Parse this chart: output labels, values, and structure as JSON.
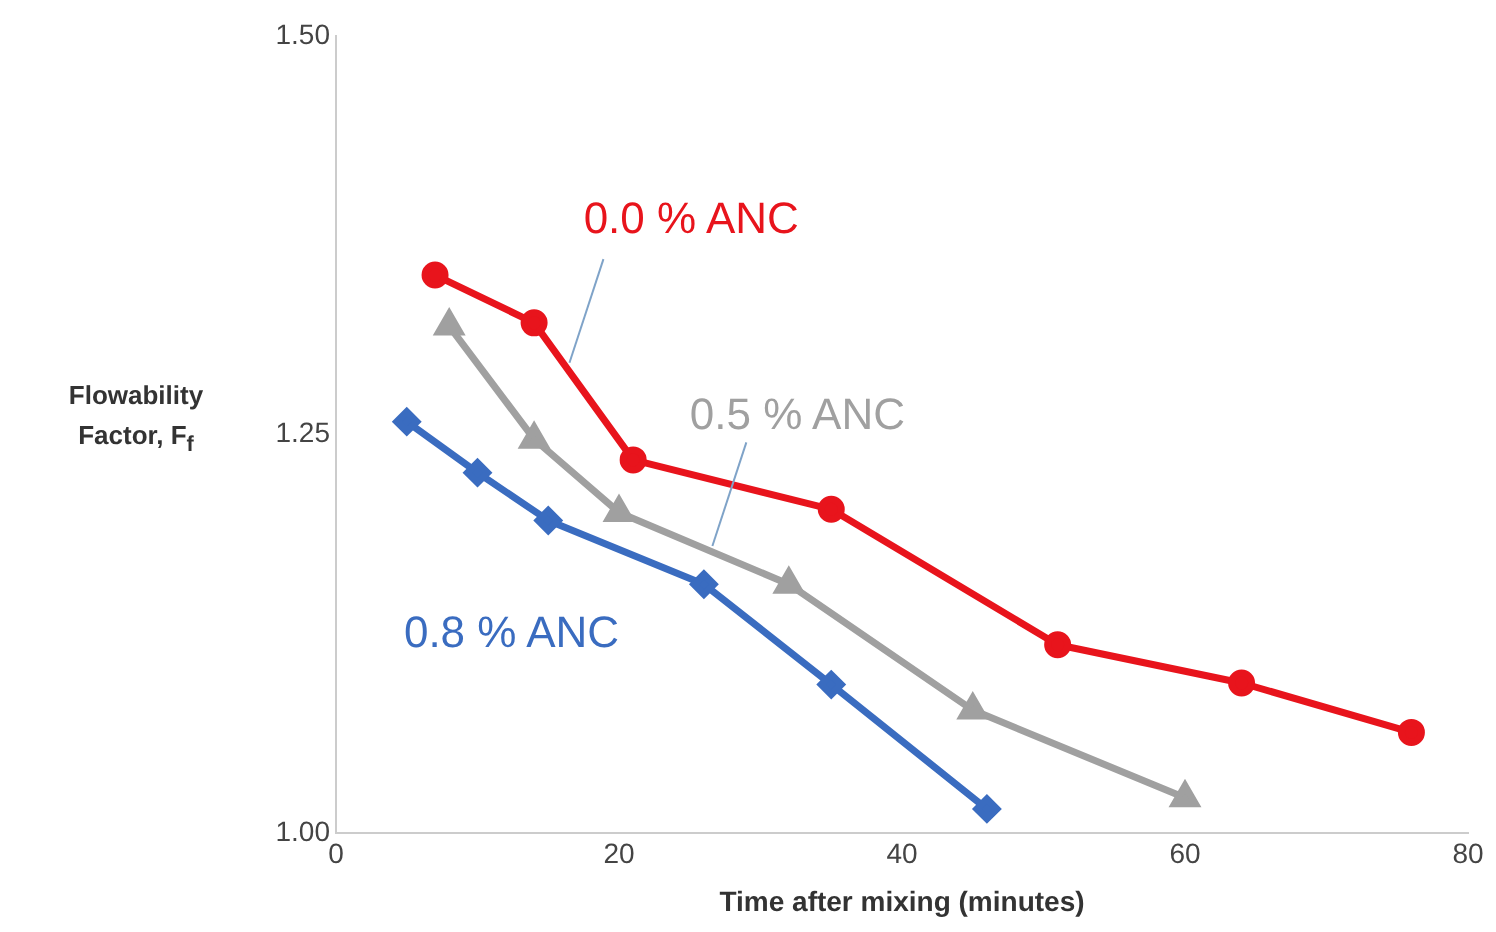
{
  "chart_data": {
    "type": "line",
    "xlabel": "Time after mixing (minutes)",
    "ylabel": "Flowability Factor, F$_{f}$",
    "xlim": [
      0,
      80
    ],
    "xticks": [
      0,
      20,
      40,
      60,
      80
    ],
    "ylim": [
      1.0,
      1.5
    ],
    "yticks": [
      {
        "value": 1.0,
        "label": "1.00"
      },
      {
        "value": 1.25,
        "label": "1.25"
      },
      {
        "value": 1.5,
        "label": "1.50"
      }
    ],
    "grid": false,
    "legend": false,
    "series": [
      {
        "name": "0.0 % ANC",
        "color": "#e8141c",
        "marker": "circle",
        "x": [
          7,
          14,
          21,
          35,
          51,
          64,
          76
        ],
        "values": [
          1.35,
          1.32,
          1.234,
          1.203,
          1.118,
          1.094,
          1.063
        ]
      },
      {
        "name": "0.5 % ANC",
        "color": "#a0a0a0",
        "marker": "triangle",
        "x": [
          8,
          14,
          20,
          32,
          45,
          60
        ],
        "values": [
          1.318,
          1.247,
          1.201,
          1.156,
          1.077,
          1.022
        ]
      },
      {
        "name": "0.8 % ANC",
        "color": "#3a6cc0",
        "marker": "diamond",
        "x": [
          5,
          10,
          15,
          26,
          35,
          46
        ],
        "values": [
          1.258,
          1.226,
          1.196,
          1.156,
          1.093,
          1.015
        ]
      }
    ]
  }
}
